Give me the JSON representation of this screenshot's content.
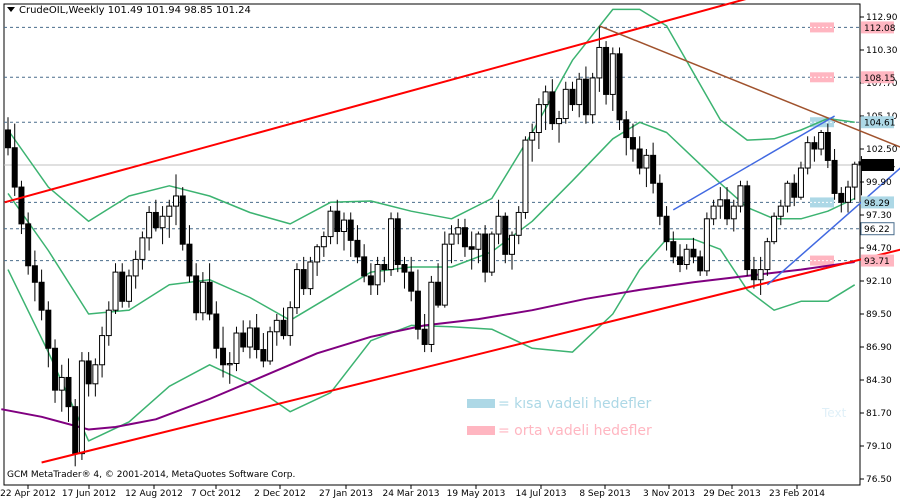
{
  "header": {
    "symbol_line": "CrudeOIL,Weekly  101.49 101.94 98.85 101.24"
  },
  "footer": {
    "copyright": "GCM MetaTrader® 4, © 2001-2014, MetaQuotes Software Corp."
  },
  "legend": [
    {
      "text": "= kısa vadeli hedefler",
      "color": "#add8e6"
    },
    {
      "text": "= orta vadeli hedefler",
      "color": "#ffb6c1"
    }
  ],
  "watermark": "Text",
  "colors": {
    "channel": "#ff0000",
    "bollinger": "#3cb371",
    "moving_average": "#800080",
    "resistance": "#a0522d",
    "short_channel": "#4169e1",
    "short_target": "#add8e6",
    "mid_target": "#ffb6c1",
    "grid": "#4a6d8c",
    "price_marker": "#000000"
  },
  "chart_data": {
    "type": "candlestick",
    "title": "CrudeOIL,Weekly",
    "ohlc_last": {
      "open": 101.49,
      "high": 101.94,
      "low": 98.85,
      "close": 101.24
    },
    "ylim": [
      76.5,
      113.9
    ],
    "ytick_labels": [
      "112.90",
      "110.30",
      "107.70",
      "105.10",
      "102.50",
      "99.90",
      "97.30",
      "94.70",
      "92.10",
      "89.50",
      "86.90",
      "84.30",
      "81.70",
      "79.10",
      "76.50"
    ],
    "xtick_labels": [
      "22 Apr 2012",
      "17 Jun 2012",
      "12 Aug 2012",
      "7 Oct 2012",
      "2 Dec 2012",
      "27 Jan 2013",
      "24 Mar 2013",
      "19 May 2013",
      "14 Jul 2013",
      "8 Sep 2013",
      "3 Nov 2013",
      "29 Dec 2013",
      "23 Feb 2014"
    ],
    "levels": [
      {
        "value": 112.08,
        "label": "112.08",
        "kind": "mid_target"
      },
      {
        "value": 108.15,
        "label": "108.15",
        "kind": "mid_target"
      },
      {
        "value": 104.61,
        "label": "104.61",
        "kind": "short_target"
      },
      {
        "value": 101.24,
        "label": "101.24",
        "kind": "current"
      },
      {
        "value": 98.29,
        "label": "98.29",
        "kind": "short_target"
      },
      {
        "value": 96.22,
        "label": "96.22",
        "kind": "plain"
      },
      {
        "value": 93.71,
        "label": "93.71",
        "kind": "mid_target"
      }
    ],
    "candles": [
      [
        104.0,
        105.0,
        102.0,
        102.6
      ],
      [
        102.6,
        104.5,
        98.8,
        99.5
      ],
      [
        99.5,
        100.0,
        95.8,
        96.6
      ],
      [
        96.6,
        97.5,
        92.6,
        93.3
      ],
      [
        93.3,
        94.5,
        90.5,
        92.0
      ],
      [
        92.0,
        93.0,
        89.0,
        89.8
      ],
      [
        89.8,
        90.5,
        85.3,
        86.8
      ],
      [
        86.8,
        87.5,
        82.5,
        83.5
      ],
      [
        83.5,
        85.5,
        81.8,
        84.5
      ],
      [
        84.5,
        86.0,
        81.0,
        82.2
      ],
      [
        82.2,
        82.8,
        77.5,
        78.5
      ],
      [
        78.5,
        86.5,
        78.0,
        85.8
      ],
      [
        85.8,
        86.5,
        83.0,
        84.0
      ],
      [
        84.0,
        86.0,
        83.0,
        85.5
      ],
      [
        85.5,
        88.5,
        84.5,
        87.8
      ],
      [
        87.8,
        90.5,
        87.0,
        89.8
      ],
      [
        89.8,
        93.5,
        89.5,
        92.8
      ],
      [
        92.8,
        93.5,
        90.0,
        90.5
      ],
      [
        90.5,
        93.0,
        90.0,
        92.5
      ],
      [
        92.5,
        94.5,
        91.5,
        93.8
      ],
      [
        93.8,
        96.0,
        93.0,
        95.5
      ],
      [
        95.5,
        98.0,
        94.5,
        97.5
      ],
      [
        97.5,
        98.5,
        96.0,
        96.3
      ],
      [
        96.3,
        98.0,
        95.0,
        97.2
      ],
      [
        97.2,
        98.5,
        95.5,
        98.0
      ],
      [
        98.0,
        100.5,
        96.5,
        98.8
      ],
      [
        98.8,
        99.5,
        94.5,
        95.0
      ],
      [
        95.0,
        96.5,
        92.0,
        92.5
      ],
      [
        92.5,
        93.5,
        89.0,
        89.6
      ],
      [
        89.6,
        92.8,
        89.0,
        92.0
      ],
      [
        92.0,
        93.5,
        89.0,
        89.5
      ],
      [
        89.5,
        90.5,
        86.0,
        86.8
      ],
      [
        86.8,
        88.5,
        84.5,
        85.5
      ],
      [
        85.5,
        86.5,
        84.0,
        85.6
      ],
      [
        85.6,
        88.5,
        85.0,
        88.0
      ],
      [
        88.0,
        89.0,
        86.5,
        86.9
      ],
      [
        86.9,
        89.0,
        86.0,
        88.4
      ],
      [
        88.4,
        89.5,
        86.0,
        86.7
      ],
      [
        86.7,
        88.0,
        85.3,
        85.8
      ],
      [
        85.8,
        88.5,
        85.5,
        88.1
      ],
      [
        88.1,
        89.5,
        87.0,
        89.0
      ],
      [
        89.0,
        90.0,
        87.5,
        87.8
      ],
      [
        87.8,
        90.5,
        87.0,
        90.0
      ],
      [
        90.0,
        93.5,
        89.5,
        93.0
      ],
      [
        93.0,
        94.0,
        91.0,
        91.5
      ],
      [
        91.5,
        94.0,
        91.0,
        93.6
      ],
      [
        93.6,
        95.0,
        92.5,
        94.8
      ],
      [
        94.8,
        96.0,
        94.0,
        95.6
      ],
      [
        95.6,
        98.0,
        95.0,
        97.6
      ],
      [
        97.6,
        98.5,
        95.0,
        96.0
      ],
      [
        96.0,
        97.5,
        94.5,
        96.9
      ],
      [
        96.9,
        97.5,
        94.0,
        95.3
      ],
      [
        95.3,
        96.5,
        93.5,
        94.0
      ],
      [
        94.0,
        95.0,
        92.0,
        92.5
      ],
      [
        92.5,
        93.5,
        91.0,
        91.8
      ],
      [
        91.8,
        94.0,
        91.0,
        93.4
      ],
      [
        93.4,
        94.0,
        92.0,
        93.0
      ],
      [
        93.0,
        97.5,
        92.5,
        97.0
      ],
      [
        97.0,
        97.5,
        92.8,
        93.4
      ],
      [
        93.4,
        94.0,
        91.5,
        92.8
      ],
      [
        92.8,
        94.0,
        90.5,
        91.3
      ],
      [
        91.3,
        93.0,
        87.5,
        88.3
      ],
      [
        88.3,
        89.5,
        86.5,
        87.1
      ],
      [
        87.1,
        92.5,
        86.5,
        92.0
      ],
      [
        92.0,
        93.5,
        90.0,
        90.2
      ],
      [
        90.2,
        96.0,
        90.0,
        95.0
      ],
      [
        95.0,
        96.5,
        93.5,
        95.8
      ],
      [
        95.8,
        97.0,
        95.0,
        96.3
      ],
      [
        96.3,
        97.0,
        94.0,
        94.8
      ],
      [
        94.8,
        96.0,
        93.0,
        94.6
      ],
      [
        94.6,
        96.0,
        93.5,
        95.8
      ],
      [
        95.8,
        96.5,
        92.0,
        92.8
      ],
      [
        92.8,
        96.0,
        92.5,
        95.8
      ],
      [
        95.8,
        98.5,
        95.0,
        97.2
      ],
      [
        97.2,
        97.5,
        93.5,
        94.2
      ],
      [
        94.2,
        96.0,
        93.0,
        95.7
      ],
      [
        95.7,
        98.0,
        95.0,
        97.5
      ],
      [
        97.5,
        103.5,
        97.0,
        103.2
      ],
      [
        103.2,
        104.5,
        101.5,
        103.8
      ],
      [
        103.8,
        106.5,
        102.5,
        106.0
      ],
      [
        106.0,
        107.5,
        104.0,
        107.0
      ],
      [
        107.0,
        108.0,
        104.0,
        104.5
      ],
      [
        104.5,
        105.5,
        103.0,
        104.9
      ],
      [
        104.9,
        107.8,
        104.5,
        107.2
      ],
      [
        107.2,
        107.8,
        105.5,
        106.0
      ],
      [
        106.0,
        108.5,
        105.0,
        108.0
      ],
      [
        108.0,
        109.0,
        104.5,
        105.2
      ],
      [
        105.2,
        108.5,
        104.5,
        108.1
      ],
      [
        108.1,
        112.2,
        107.0,
        110.5
      ],
      [
        110.5,
        111.0,
        106.0,
        106.8
      ],
      [
        106.8,
        110.5,
        105.5,
        110.0
      ],
      [
        110.0,
        110.5,
        104.0,
        104.8
      ],
      [
        104.8,
        105.5,
        102.0,
        103.4
      ],
      [
        103.4,
        104.5,
        101.5,
        102.5
      ],
      [
        102.5,
        103.5,
        100.5,
        101.0
      ],
      [
        101.0,
        102.5,
        99.5,
        102.0
      ],
      [
        102.0,
        103.0,
        99.0,
        99.8
      ],
      [
        99.8,
        100.5,
        96.5,
        97.2
      ],
      [
        97.2,
        98.0,
        94.5,
        95.2
      ],
      [
        95.2,
        96.0,
        93.5,
        94.0
      ],
      [
        94.0,
        95.0,
        92.8,
        93.4
      ],
      [
        93.4,
        95.0,
        93.0,
        94.6
      ],
      [
        94.6,
        95.5,
        93.5,
        94.0
      ],
      [
        94.0,
        94.5,
        92.5,
        92.9
      ],
      [
        92.9,
        97.5,
        92.5,
        97.0
      ],
      [
        97.0,
        98.5,
        96.5,
        98.0
      ],
      [
        98.0,
        99.5,
        97.0,
        98.5
      ],
      [
        98.5,
        99.5,
        96.5,
        97.0
      ],
      [
        97.0,
        98.5,
        96.0,
        98.0
      ],
      [
        98.0,
        100.0,
        97.5,
        99.6
      ],
      [
        99.6,
        100.0,
        92.5,
        93.0
      ],
      [
        93.0,
        94.0,
        91.5,
        92.2
      ],
      [
        92.2,
        94.0,
        91.0,
        93.0
      ],
      [
        93.0,
        95.5,
        92.5,
        95.2
      ],
      [
        95.2,
        97.5,
        95.0,
        97.2
      ],
      [
        97.2,
        98.5,
        96.5,
        98.0
      ],
      [
        98.0,
        100.0,
        97.5,
        99.8
      ],
      [
        99.8,
        100.5,
        98.0,
        98.7
      ],
      [
        98.7,
        101.5,
        98.5,
        101.0
      ],
      [
        101.0,
        103.5,
        100.5,
        103.0
      ],
      [
        103.0,
        103.5,
        101.5,
        102.5
      ],
      [
        102.5,
        104.0,
        102.0,
        103.8
      ],
      [
        103.8,
        104.5,
        101.0,
        101.6
      ],
      [
        101.6,
        102.5,
        98.5,
        99.0
      ],
      [
        99.0,
        99.5,
        97.5,
        98.3
      ],
      [
        98.3,
        100.0,
        97.5,
        99.5
      ],
      [
        99.5,
        101.5,
        98.5,
        101.3
      ],
      [
        101.49,
        101.94,
        98.85,
        101.24
      ]
    ],
    "indicators": [
      {
        "name": "bollinger_upper",
        "kind": "band",
        "points": [
          [
            0,
            104.0
          ],
          [
            6,
            99.5
          ],
          [
            12,
            96.8
          ],
          [
            18,
            98.8
          ],
          [
            24,
            99.6
          ],
          [
            30,
            98.8
          ],
          [
            36,
            97.5
          ],
          [
            42,
            96.6
          ],
          [
            48,
            98.3
          ],
          [
            54,
            98.4
          ],
          [
            60,
            97.6
          ],
          [
            66,
            97.0
          ],
          [
            72,
            98.6
          ],
          [
            78,
            103.8
          ],
          [
            84,
            109.5
          ],
          [
            90,
            113.5
          ],
          [
            94,
            113.5
          ],
          [
            98,
            112.2
          ],
          [
            102,
            108.5
          ],
          [
            106,
            104.8
          ],
          [
            110,
            103.2
          ],
          [
            114,
            103.3
          ],
          [
            118,
            104.0
          ],
          [
            122,
            104.9
          ],
          [
            126,
            104.6
          ]
        ]
      },
      {
        "name": "bollinger_middle",
        "kind": "band",
        "points": [
          [
            0,
            99.0
          ],
          [
            6,
            94.5
          ],
          [
            12,
            89.5
          ],
          [
            18,
            89.8
          ],
          [
            24,
            91.8
          ],
          [
            30,
            92.2
          ],
          [
            36,
            90.8
          ],
          [
            42,
            89.0
          ],
          [
            48,
            90.9
          ],
          [
            54,
            92.8
          ],
          [
            60,
            93.2
          ],
          [
            66,
            93.2
          ],
          [
            72,
            94.4
          ],
          [
            78,
            96.8
          ],
          [
            84,
            100.0
          ],
          [
            90,
            103.3
          ],
          [
            94,
            104.6
          ],
          [
            98,
            103.8
          ],
          [
            102,
            101.8
          ],
          [
            106,
            99.8
          ],
          [
            110,
            97.9
          ],
          [
            114,
            97.0
          ],
          [
            118,
            97.0
          ],
          [
            122,
            97.6
          ],
          [
            126,
            98.6
          ]
        ]
      },
      {
        "name": "bollinger_lower",
        "kind": "band",
        "points": [
          [
            0,
            93.0
          ],
          [
            6,
            86.5
          ],
          [
            12,
            79.5
          ],
          [
            18,
            81.0
          ],
          [
            24,
            83.8
          ],
          [
            30,
            85.5
          ],
          [
            36,
            84.0
          ],
          [
            42,
            81.8
          ],
          [
            48,
            83.3
          ],
          [
            54,
            87.4
          ],
          [
            60,
            88.6
          ],
          [
            66,
            88.5
          ],
          [
            72,
            88.3
          ],
          [
            78,
            86.8
          ],
          [
            84,
            86.5
          ],
          [
            90,
            89.5
          ],
          [
            94,
            93.0
          ],
          [
            98,
            95.4
          ],
          [
            102,
            95.4
          ],
          [
            106,
            94.6
          ],
          [
            110,
            91.4
          ],
          [
            114,
            89.8
          ],
          [
            118,
            90.5
          ],
          [
            122,
            90.5
          ],
          [
            126,
            91.8
          ]
        ]
      },
      {
        "name": "moving_average",
        "kind": "ma",
        "points": [
          [
            -1,
            82.0
          ],
          [
            5,
            81.4
          ],
          [
            12,
            80.4
          ],
          [
            16,
            80.6
          ],
          [
            22,
            81.2
          ],
          [
            30,
            82.8
          ],
          [
            38,
            84.6
          ],
          [
            46,
            86.4
          ],
          [
            54,
            87.7
          ],
          [
            62,
            88.6
          ],
          [
            70,
            89.1
          ],
          [
            78,
            89.8
          ],
          [
            86,
            90.7
          ],
          [
            94,
            91.4
          ],
          [
            102,
            92.0
          ],
          [
            110,
            92.5
          ],
          [
            118,
            93.0
          ],
          [
            126,
            93.6
          ]
        ]
      },
      {
        "name": "upper_channel",
        "kind": "channel",
        "points": [
          [
            -0.5,
            98.3
          ],
          [
            123.5,
            116.3
          ]
        ]
      },
      {
        "name": "lower_channel",
        "kind": "channel",
        "points": [
          [
            5,
            77.8
          ],
          [
            133,
            94.6
          ]
        ]
      },
      {
        "name": "resistance",
        "kind": "resistance",
        "points": [
          [
            88,
            112.2
          ],
          [
            133,
            102.6
          ]
        ]
      },
      {
        "name": "short_channel_upper",
        "kind": "short_channel",
        "points": [
          [
            99,
            97.7
          ],
          [
            123,
            105.1
          ]
        ]
      },
      {
        "name": "short_channel_lower",
        "kind": "short_channel",
        "points": [
          [
            113,
            91.8
          ],
          [
            133,
            101.1
          ]
        ]
      }
    ]
  }
}
